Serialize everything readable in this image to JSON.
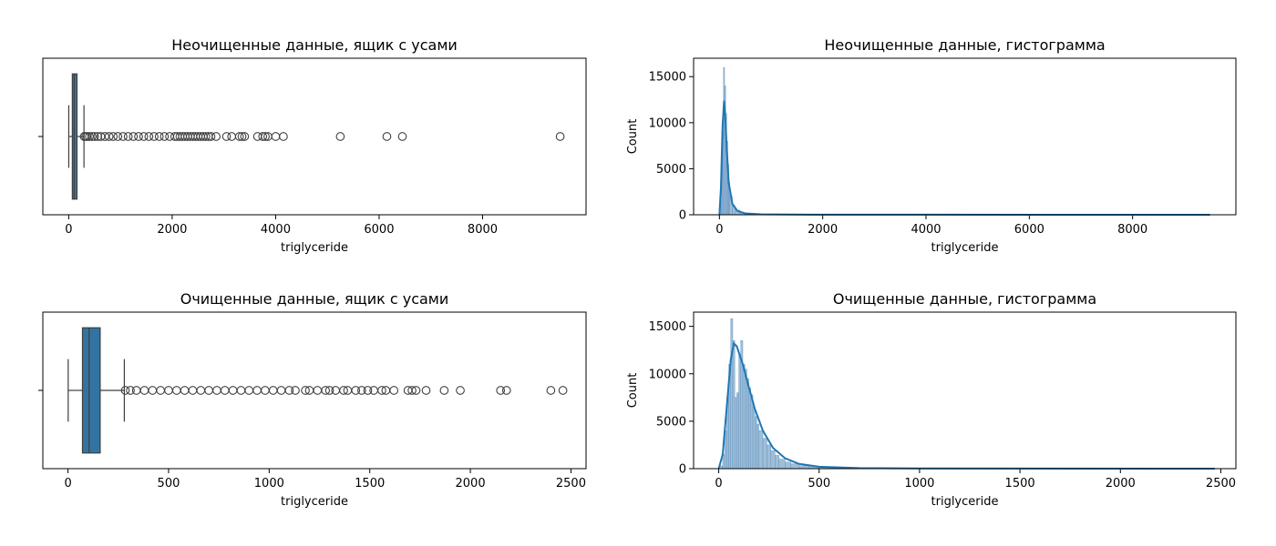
{
  "chart_data": [
    {
      "type": "boxplot",
      "title": "Неочищенные данные, ящик с усами",
      "xlabel": "triglyceride",
      "ylabel": "",
      "xlim": [
        -500,
        10000
      ],
      "xticks": [
        "0",
        "2000",
        "4000",
        "6000",
        "8000"
      ],
      "stats": {
        "whisker_low": 1,
        "q1": 70,
        "median": 105,
        "q3": 160,
        "whisker_high": 295
      },
      "outliers": [
        300,
        330,
        360,
        400,
        450,
        500,
        560,
        620,
        700,
        780,
        860,
        950,
        1050,
        1150,
        1250,
        1350,
        1450,
        1550,
        1650,
        1750,
        1850,
        1950,
        2050,
        2100,
        2150,
        2200,
        2250,
        2300,
        2350,
        2400,
        2450,
        2500,
        2550,
        2600,
        2650,
        2700,
        2750,
        2850,
        3050,
        3150,
        3300,
        3350,
        3400,
        3650,
        3750,
        3800,
        3850,
        4000,
        4150,
        5250,
        6150,
        6450,
        9500
      ]
    },
    {
      "type": "histogram",
      "title": "Неочищенные данные, гистограмма",
      "xlabel": "triglyceride",
      "ylabel": "Count",
      "xlim": [
        -500,
        10000
      ],
      "ylim": [
        0,
        17000
      ],
      "xticks": [
        "0",
        "2000",
        "4000",
        "6000",
        "8000"
      ],
      "yticks": [
        "0",
        "5000",
        "10000",
        "15000"
      ],
      "bars": {
        "x": [
          0,
          20,
          40,
          60,
          80,
          100,
          120,
          140,
          160,
          180,
          200,
          250,
          300,
          400,
          500,
          700
        ],
        "counts": [
          100,
          1500,
          5500,
          9000,
          16000,
          14000,
          11000,
          8000,
          5500,
          3500,
          2000,
          1000,
          500,
          200,
          100,
          50
        ]
      },
      "kde": {
        "x": [
          0,
          30,
          60,
          90,
          110,
          140,
          180,
          250,
          350,
          500,
          800,
          2000,
          9500
        ],
        "y": [
          0,
          3000,
          9500,
          12400,
          11000,
          7500,
          3500,
          1200,
          400,
          150,
          50,
          10,
          0
        ]
      }
    },
    {
      "type": "boxplot",
      "title": "Очищенные данные, ящик с усами",
      "xlabel": "triglyceride",
      "ylabel": "",
      "xlim": [
        -125,
        2575
      ],
      "xticks": [
        "0",
        "500",
        "1000",
        "1500",
        "2000",
        "2500"
      ],
      "stats": {
        "whisker_low": 1,
        "q1": 72,
        "median": 105,
        "q3": 160,
        "whisker_high": 280
      },
      "outliers": [
        285,
        310,
        340,
        380,
        420,
        460,
        500,
        540,
        580,
        620,
        660,
        700,
        740,
        780,
        820,
        860,
        900,
        940,
        980,
        1020,
        1060,
        1100,
        1130,
        1180,
        1200,
        1240,
        1280,
        1300,
        1330,
        1370,
        1390,
        1430,
        1460,
        1490,
        1520,
        1560,
        1580,
        1620,
        1690,
        1710,
        1730,
        1780,
        1870,
        1950,
        2150,
        2180,
        2400,
        2460
      ]
    },
    {
      "type": "histogram",
      "title": "Очищенные данные, гистограмма",
      "xlabel": "triglyceride",
      "ylabel": "Count",
      "xlim": [
        -125,
        2575
      ],
      "ylim": [
        0,
        16500
      ],
      "xticks": [
        "0",
        "500",
        "1000",
        "1500",
        "2000",
        "2500"
      ],
      "yticks": [
        "0",
        "5000",
        "10000",
        "15000"
      ],
      "bars": {
        "x": [
          10,
          20,
          30,
          40,
          50,
          60,
          70,
          80,
          90,
          100,
          110,
          120,
          130,
          140,
          150,
          160,
          170,
          180,
          190,
          200,
          220,
          240,
          260,
          280,
          300,
          330,
          360,
          400,
          450,
          500,
          600,
          800
        ],
        "counts": [
          300,
          1500,
          4000,
          7500,
          11000,
          15800,
          13500,
          7500,
          8000,
          12000,
          13500,
          11000,
          10500,
          9500,
          8500,
          7800,
          6500,
          5500,
          4700,
          4000,
          3200,
          2500,
          1900,
          1400,
          1000,
          700,
          500,
          300,
          200,
          120,
          60,
          20
        ]
      },
      "kde": {
        "x": [
          0,
          20,
          40,
          60,
          75,
          90,
          120,
          150,
          180,
          220,
          270,
          330,
          400,
          500,
          700,
          1000,
          2470
        ],
        "y": [
          0,
          1500,
          6500,
          11500,
          13200,
          12900,
          11000,
          8600,
          6300,
          4000,
          2200,
          1100,
          500,
          200,
          60,
          20,
          0
        ]
      }
    }
  ]
}
